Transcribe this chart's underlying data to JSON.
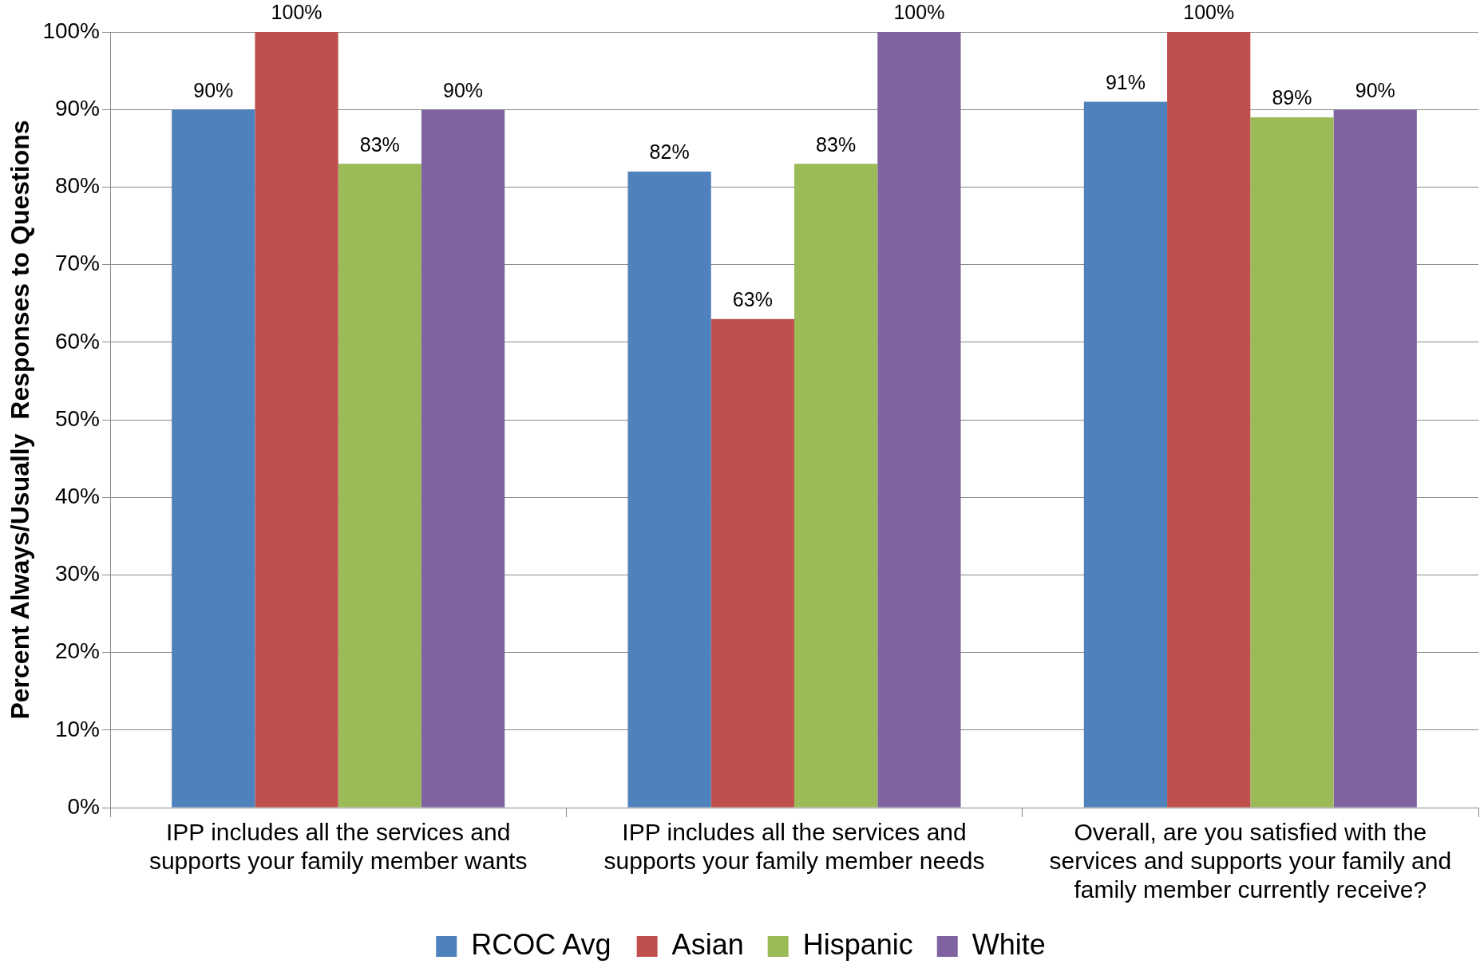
{
  "chart_data": {
    "type": "bar",
    "ylabel": "Percent Always/Usually  Responses to Questions",
    "categories": [
      "IPP includes all the services and supports your family member wants",
      "IPP includes all the services and supports your family member needs",
      "Overall, are you satisfied with the services and supports your family and family member currently receive?"
    ],
    "series": [
      {
        "name": "RCOC Avg",
        "color": "#4f81bd",
        "values": [
          90,
          82,
          91
        ],
        "value_labels": [
          "90%",
          "82%",
          "91%"
        ]
      },
      {
        "name": "Asian",
        "color": "#c0504d",
        "values": [
          100,
          63,
          100
        ],
        "value_labels": [
          "100%",
          "63%",
          "100%"
        ]
      },
      {
        "name": "Hispanic",
        "color": "#9bbb59",
        "values": [
          83,
          83,
          89
        ],
        "value_labels": [
          "83%",
          "83%",
          "89%"
        ]
      },
      {
        "name": "White",
        "color": "#8064a2",
        "values": [
          90,
          100,
          90
        ],
        "value_labels": [
          "90%",
          "100%",
          "90%"
        ]
      }
    ],
    "ylim": [
      0,
      100
    ],
    "yticks": [
      {
        "value": 0,
        "label": "0%"
      },
      {
        "value": 10,
        "label": "10%"
      },
      {
        "value": 20,
        "label": "20%"
      },
      {
        "value": 30,
        "label": "30%"
      },
      {
        "value": 40,
        "label": "40%"
      },
      {
        "value": 50,
        "label": "50%"
      },
      {
        "value": 60,
        "label": "60%"
      },
      {
        "value": 70,
        "label": "70%"
      },
      {
        "value": 80,
        "label": "80%"
      },
      {
        "value": 90,
        "label": "90%"
      },
      {
        "value": 100,
        "label": "100%"
      }
    ],
    "grid": "y",
    "legend": "bottom"
  }
}
